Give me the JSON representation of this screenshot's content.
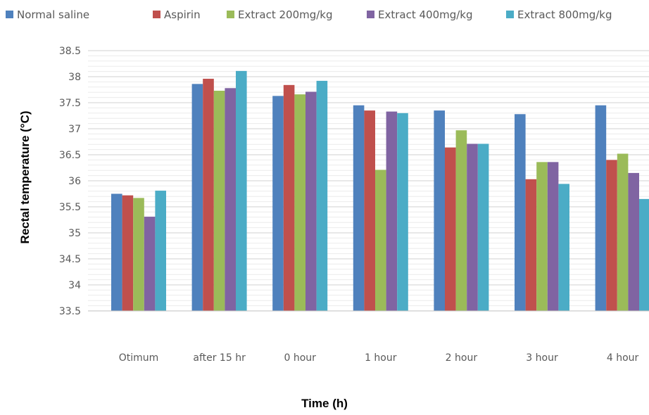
{
  "chart_data": {
    "type": "bar",
    "title": "",
    "xlabel": "Time (h)",
    "ylabel": "Rectal temperature (°C)",
    "ylim": [
      33.5,
      38.5
    ],
    "yticks": [
      "38.5",
      "38",
      "37.5",
      "37",
      "36.5",
      "36",
      "35.5",
      "35",
      "34.5",
      "34",
      "33.5"
    ],
    "categories": [
      "Otimum",
      "after 15 hr",
      "0 hour",
      "1 hour",
      "2 hour",
      "3 hour",
      "4  hour"
    ],
    "grid": true,
    "legend_position": "top",
    "series": [
      {
        "name": "Normal saline",
        "color": "#4F81BD",
        "values": [
          35.75,
          37.86,
          37.63,
          37.45,
          37.35,
          37.28,
          37.45
        ]
      },
      {
        "name": "Aspirin",
        "color": "#C0504D",
        "values": [
          35.72,
          37.96,
          37.84,
          37.35,
          36.64,
          36.03,
          36.4
        ]
      },
      {
        "name": "Extract 200mg/kg",
        "color": "#9BBB59",
        "values": [
          35.67,
          37.73,
          37.66,
          36.21,
          36.97,
          36.36,
          36.52
        ]
      },
      {
        "name": "Extract 400mg/kg",
        "color": "#8064A2",
        "values": [
          35.31,
          37.78,
          37.71,
          37.33,
          36.71,
          36.36,
          36.15
        ]
      },
      {
        "name": "Extract 800mg/kg",
        "color": "#4BACC6",
        "values": [
          35.81,
          38.11,
          37.92,
          37.3,
          36.71,
          35.94,
          35.65
        ]
      }
    ]
  }
}
